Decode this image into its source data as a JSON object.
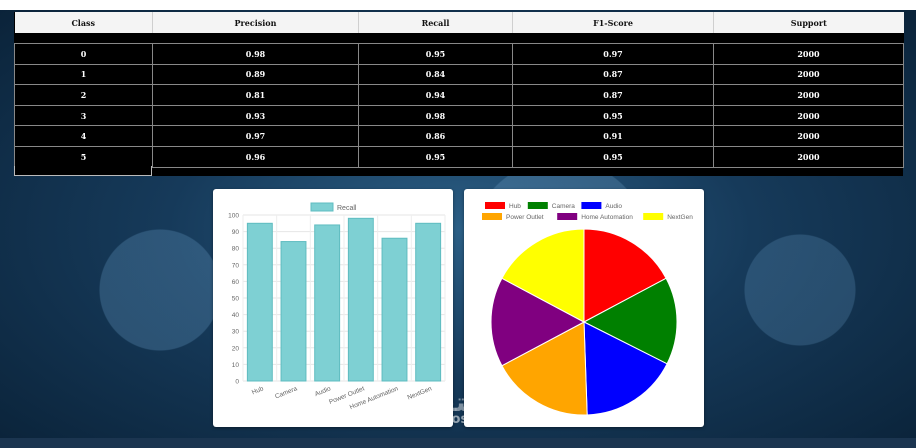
{
  "table": {
    "headers": [
      "Class",
      "Precision",
      "Recall",
      "F1-Score",
      "Support"
    ],
    "rows": [
      [
        "0",
        "0.98",
        "0.95",
        "0.97",
        "2000"
      ],
      [
        "1",
        "0.89",
        "0.84",
        "0.87",
        "2000"
      ],
      [
        "2",
        "0.81",
        "0.94",
        "0.87",
        "2000"
      ],
      [
        "3",
        "0.93",
        "0.98",
        "0.95",
        "2000"
      ],
      [
        "4",
        "0.97",
        "0.86",
        "0.91",
        "2000"
      ],
      [
        "5",
        "0.96",
        "0.95",
        "0.95",
        "2000"
      ]
    ]
  },
  "watermark": {
    "text": "مستقل",
    "sub": "mostaql.com"
  },
  "chart_data": [
    {
      "type": "bar",
      "legend": [
        "Recall"
      ],
      "categories": [
        "Hub",
        "Camera",
        "Audio",
        "Power Outlet",
        "Home Automation",
        "NextGen"
      ],
      "series": [
        {
          "name": "Recall",
          "values": [
            95,
            84,
            94,
            98,
            86,
            95
          ]
        }
      ],
      "ylim": [
        0,
        100
      ],
      "yticks": [
        0,
        10,
        20,
        30,
        40,
        50,
        60,
        70,
        80,
        90,
        100
      ],
      "grid": true,
      "legend_position": "top",
      "colors": {
        "fill": "#7ed0d3",
        "stroke": "#5fbcc0"
      }
    },
    {
      "type": "pie",
      "categories": [
        "Hub",
        "Camera",
        "Audio",
        "Power Outlet",
        "Home Automation",
        "NextGen"
      ],
      "values": [
        0.95,
        0.84,
        0.94,
        0.98,
        0.86,
        0.95
      ],
      "colors": [
        "#ff0000",
        "#008000",
        "#0000ff",
        "#ffa500",
        "#800080",
        "#ffff00"
      ],
      "legend_position": "top"
    }
  ]
}
